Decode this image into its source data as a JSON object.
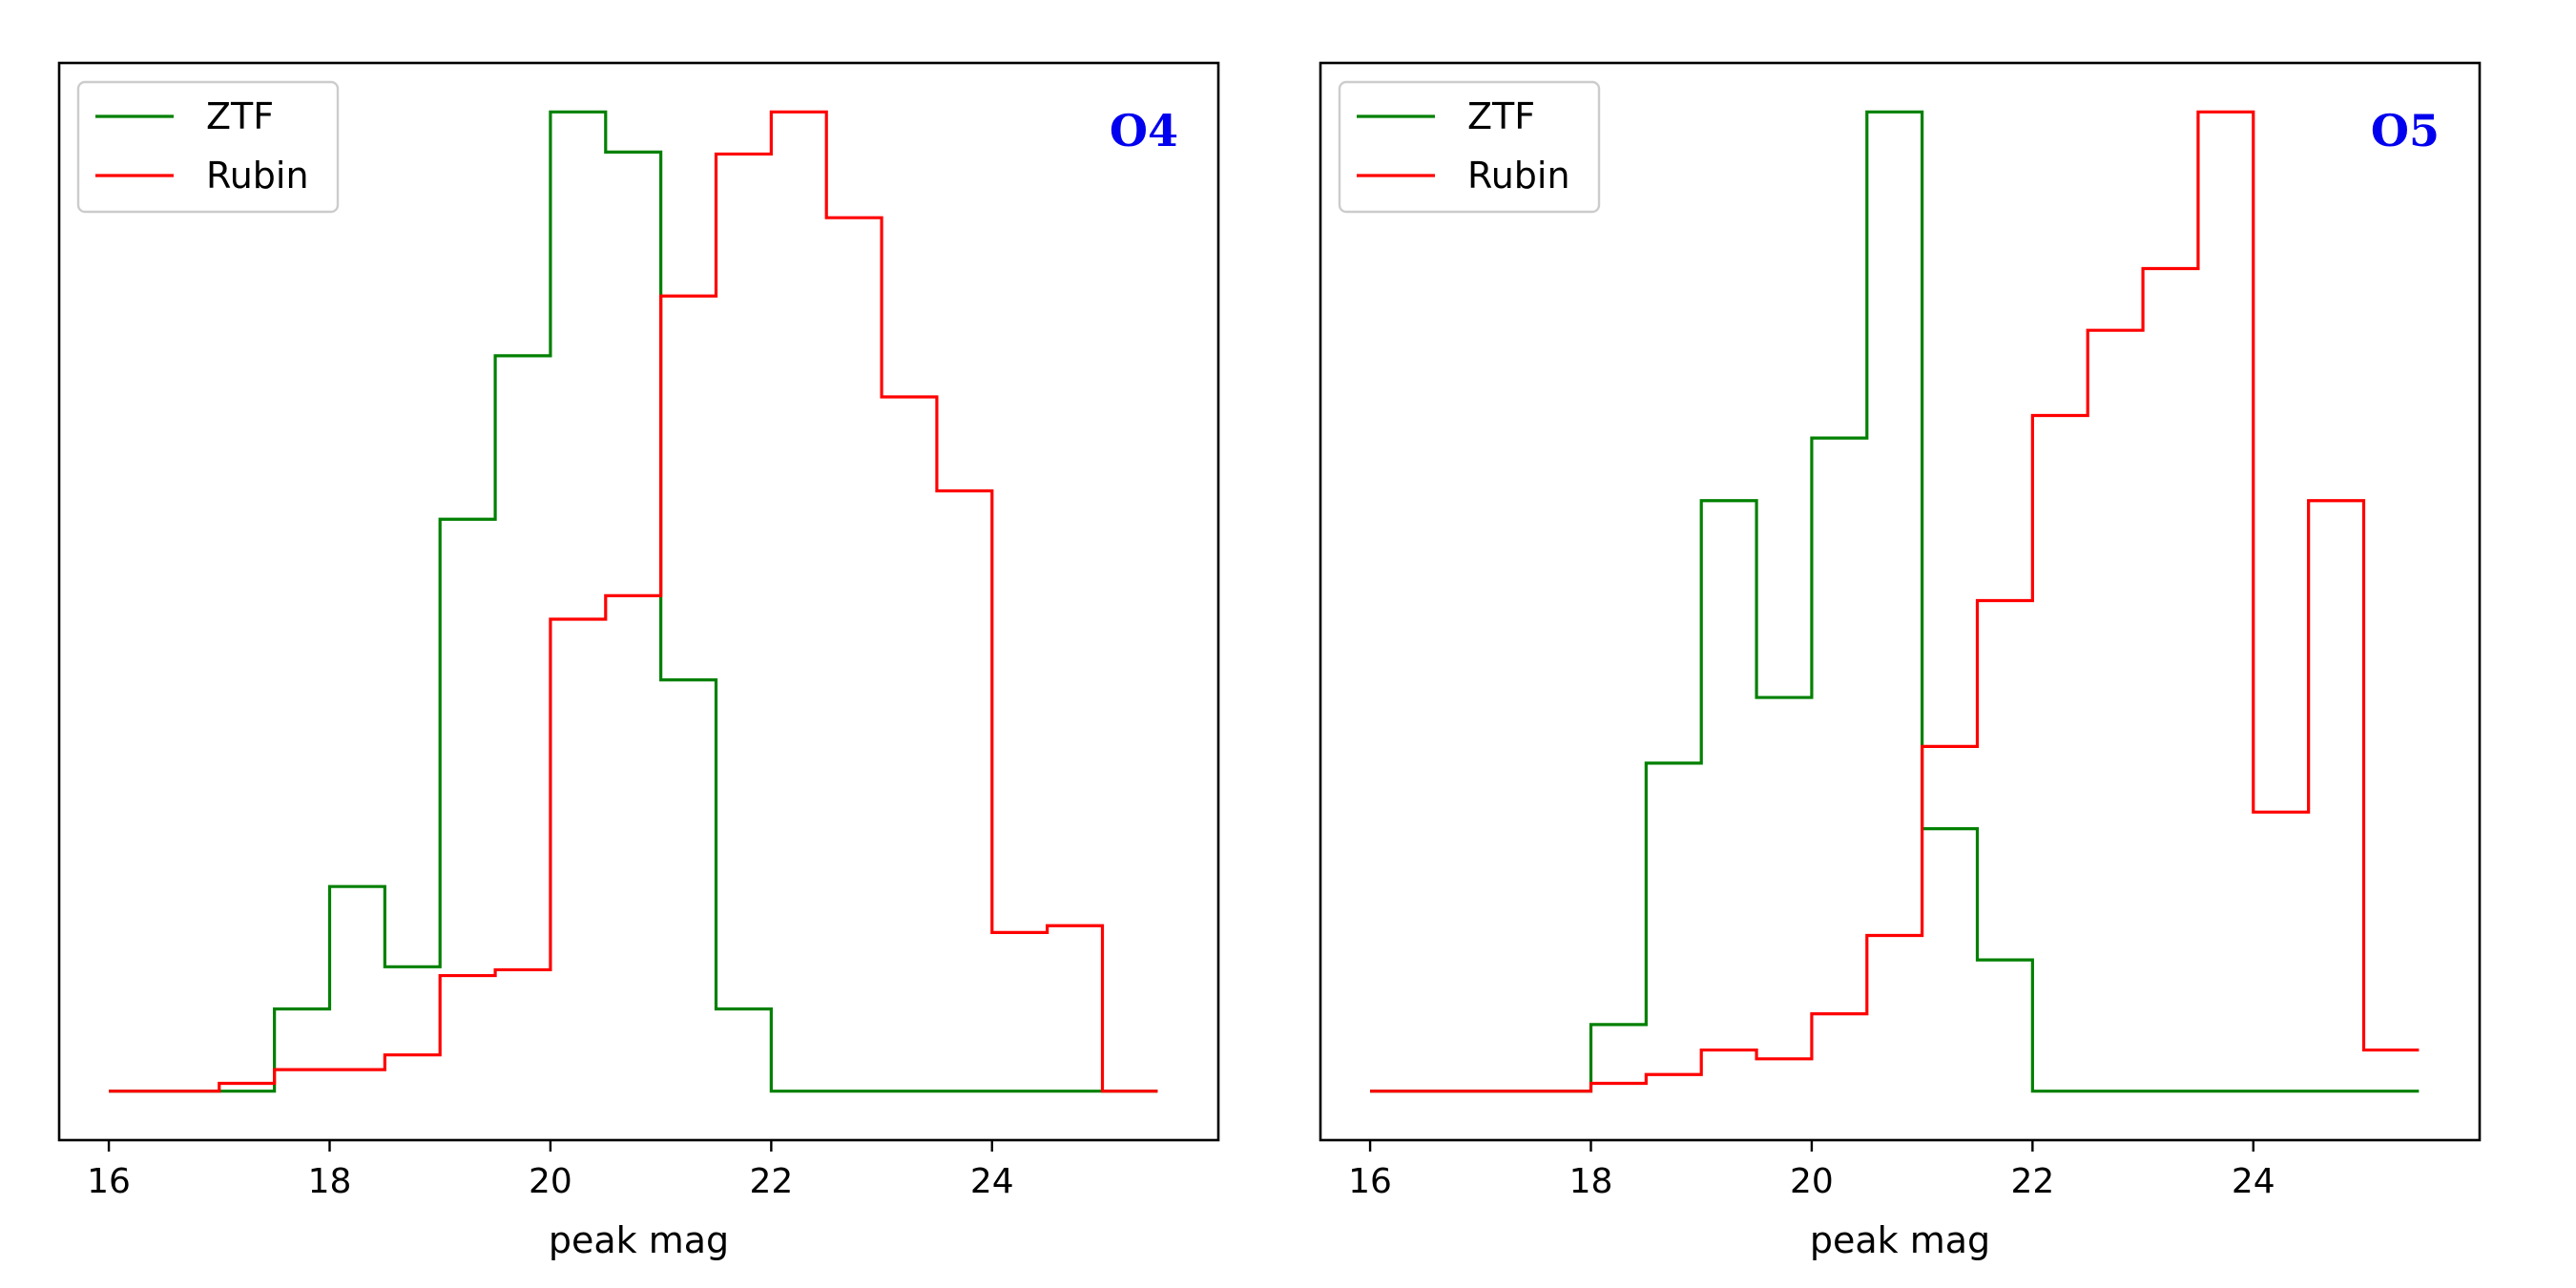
{
  "chart_data": [
    {
      "type": "histogram",
      "title": "O4",
      "title_color": "#0000ee",
      "xlabel": "peak mag",
      "ylabel": "",
      "xlim": [
        15.55,
        26.05
      ],
      "ylim": [
        -0.05,
        1.05
      ],
      "y_ticks_shown": false,
      "xticks": [
        "16",
        "18",
        "20",
        "22",
        "24"
      ],
      "legend_position": "top-left",
      "series": [
        {
          "name": "ZTF",
          "color": "#008000",
          "bin_edges": [
            16,
            16.5,
            17,
            17.5,
            18,
            18.5,
            19,
            19.5,
            20,
            20.5,
            21,
            21.5,
            22,
            22.5,
            23,
            23.5,
            24,
            24.5,
            25,
            25.5
          ],
          "values": [
            0,
            0,
            0,
            0.084,
            0.209,
            0.127,
            0.584,
            0.751,
            1.0,
            0.959,
            0.42,
            0.084,
            0,
            0,
            0,
            0,
            0,
            0,
            0
          ]
        },
        {
          "name": "Rubin",
          "color": "#ff0000",
          "bin_edges": [
            16,
            16.5,
            17,
            17.5,
            18,
            18.5,
            19,
            19.5,
            20,
            20.5,
            21,
            21.5,
            22,
            22.5,
            23,
            23.5,
            24,
            24.5,
            25,
            25.5
          ],
          "values": [
            0,
            0,
            0.008,
            0.022,
            0.022,
            0.037,
            0.118,
            0.124,
            0.482,
            0.506,
            0.812,
            0.957,
            1.0,
            0.892,
            0.709,
            0.613,
            0.162,
            0.169,
            0
          ]
        }
      ]
    },
    {
      "type": "histogram",
      "title": "O5",
      "title_color": "#0000ee",
      "xlabel": "peak mag",
      "ylabel": "",
      "xlim": [
        15.55,
        26.05
      ],
      "ylim": [
        -0.05,
        1.05
      ],
      "y_ticks_shown": false,
      "xticks": [
        "16",
        "18",
        "20",
        "22",
        "24"
      ],
      "legend_position": "top-left",
      "series": [
        {
          "name": "ZTF",
          "color": "#008000",
          "bin_edges": [
            16,
            16.5,
            17,
            17.5,
            18,
            18.5,
            19,
            19.5,
            20,
            20.5,
            21,
            21.5,
            22,
            22.5,
            23,
            23.5,
            24,
            24.5,
            25,
            25.5
          ],
          "values": [
            0,
            0,
            0,
            0,
            0.068,
            0.335,
            0.603,
            0.402,
            0.667,
            1.0,
            0.268,
            0.134,
            0,
            0,
            0,
            0,
            0,
            0,
            0
          ]
        },
        {
          "name": "Rubin",
          "color": "#ff0000",
          "bin_edges": [
            16,
            16.5,
            17,
            17.5,
            18,
            18.5,
            19,
            19.5,
            20,
            20.5,
            21,
            21.5,
            22,
            22.5,
            23,
            23.5,
            24,
            24.5,
            25,
            25.5
          ],
          "values": [
            0,
            0,
            0,
            0,
            0.008,
            0.017,
            0.042,
            0.033,
            0.079,
            0.159,
            0.352,
            0.501,
            0.69,
            0.777,
            0.84,
            1.0,
            0.285,
            0.603,
            0.042
          ]
        }
      ]
    }
  ]
}
